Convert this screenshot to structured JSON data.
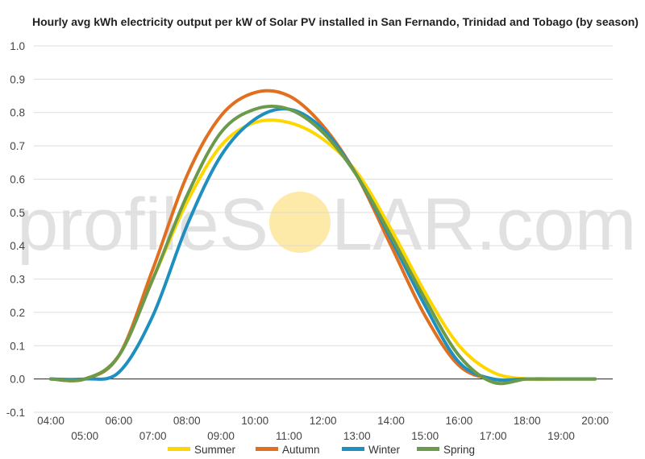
{
  "watermark": {
    "text_left": "profileS",
    "text_right": "LAR.com",
    "sun_color": "#fde9a8"
  },
  "chart_data": {
    "type": "line",
    "title": "Hourly avg kWh electricity output per kW of Solar PV installed in San Fernando, Trinidad and Tobago (by season)",
    "xlabel": "",
    "ylabel": "",
    "x": [
      "04:00",
      "05:00",
      "06:00",
      "07:00",
      "08:00",
      "09:00",
      "10:00",
      "11:00",
      "12:00",
      "13:00",
      "14:00",
      "15:00",
      "16:00",
      "17:00",
      "18:00",
      "19:00",
      "20:00"
    ],
    "x_tick_labels_upper": [
      "04:00",
      "06:00",
      "08:00",
      "10:00",
      "12:00",
      "14:00",
      "16:00",
      "18:00",
      "20:00"
    ],
    "x_tick_labels_lower": [
      "05:00",
      "07:00",
      "09:00",
      "11:00",
      "13:00",
      "15:00",
      "17:00",
      "19:00"
    ],
    "y_ticks": [
      "-0.1",
      "0.0",
      "0.1",
      "0.2",
      "0.3",
      "0.4",
      "0.5",
      "0.6",
      "0.7",
      "0.8",
      "0.9",
      "1.0"
    ],
    "ylim": [
      -0.1,
      1.0
    ],
    "grid": true,
    "legend_position": "bottom",
    "series": [
      {
        "name": "Summer",
        "color": "#ffd700",
        "values": [
          0.0,
          0.0,
          0.07,
          0.3,
          0.53,
          0.7,
          0.77,
          0.77,
          0.72,
          0.62,
          0.45,
          0.26,
          0.1,
          0.02,
          0.0,
          0.0,
          0.0
        ]
      },
      {
        "name": "Autumn",
        "color": "#e07020",
        "values": [
          0.0,
          0.0,
          0.07,
          0.33,
          0.61,
          0.79,
          0.86,
          0.85,
          0.76,
          0.61,
          0.4,
          0.19,
          0.04,
          0.0,
          0.0,
          0.0,
          0.0
        ]
      },
      {
        "name": "Winter",
        "color": "#1e8fbf",
        "values": [
          0.0,
          0.0,
          0.02,
          0.19,
          0.46,
          0.67,
          0.78,
          0.81,
          0.75,
          0.61,
          0.42,
          0.22,
          0.05,
          0.0,
          0.0,
          0.0,
          0.0
        ]
      },
      {
        "name": "Spring",
        "color": "#6b9a4a",
        "values": [
          0.0,
          0.0,
          0.07,
          0.3,
          0.55,
          0.74,
          0.81,
          0.81,
          0.74,
          0.61,
          0.43,
          0.24,
          0.07,
          -0.01,
          0.0,
          0.0,
          0.0
        ]
      }
    ]
  }
}
